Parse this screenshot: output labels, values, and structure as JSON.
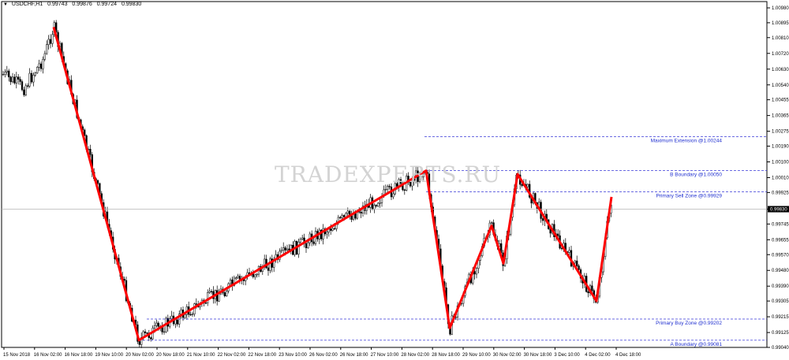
{
  "header": {
    "symbol": "USDCHF,H1",
    "open": "0.99743",
    "high": "0.99876",
    "low": "0.99724",
    "close": "0.99830"
  },
  "watermark": "TRADEXPERTS.RU",
  "chart_data": {
    "type": "candlestick",
    "symbol": "USDCHF",
    "timeframe": "H1",
    "ylim": [
      0.9904,
      1.0098
    ],
    "y_ticks": [
      "1.00980",
      "1.00895",
      "1.00810",
      "1.00720",
      "1.00630",
      "1.00540",
      "1.00455",
      "1.00365",
      "1.00275",
      "1.00190",
      "1.00100",
      "1.00010",
      "0.99925",
      "0.99830",
      "0.99745",
      "0.99655",
      "0.99570",
      "0.99480",
      "0.99390",
      "0.99305",
      "0.99215",
      "0.99125",
      "0.99040"
    ],
    "current_price": "0.99830",
    "x_ticks": [
      "15 Nov 2018",
      "16 Nov 02:00",
      "16 Nov 18:00",
      "19 Nov 10:00",
      "20 Nov 02:00",
      "20 Nov 18:00",
      "21 Nov 10:00",
      "22 Nov 02:00",
      "22 Nov 18:00",
      "23 Nov 10:00",
      "26 Nov 02:00",
      "26 Nov 18:00",
      "27 Nov 10:00",
      "28 Nov 02:00",
      "28 Nov 18:00",
      "29 Nov 10:00",
      "30 Nov 02:00",
      "30 Nov 18:00",
      "3 Dec 10:00",
      "4 Dec 02:00",
      "4 Dec 18:00"
    ],
    "price_path": [
      1.0087,
      0.99081,
      1.0005,
      0.9915,
      0.99735,
      0.9952,
      1.0003,
      0.99305,
      0.999
    ],
    "pattern_colors": {
      "zigzag": "#ff0000",
      "levels": "#3a3ad8",
      "level_text": "#1f2fd0"
    },
    "levels": [
      {
        "label": "Maximum Extension @1.00244",
        "value": 1.00244
      },
      {
        "label": "B Boundary @1.00050",
        "value": 1.0005
      },
      {
        "label": "Primary Sell Zone @0.99929",
        "value": 0.99929
      },
      {
        "label": "Primary Buy Zone @0.99202",
        "value": 0.99202
      },
      {
        "label": "A Boundary @0.99081",
        "value": 0.99081
      }
    ],
    "grid": false
  }
}
